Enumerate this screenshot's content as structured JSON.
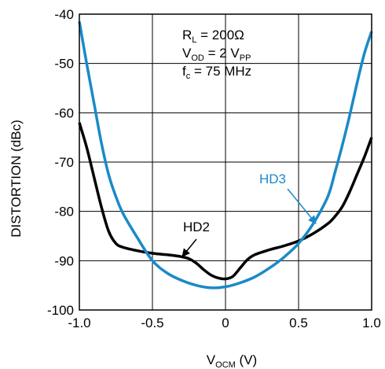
{
  "chart_data": {
    "type": "line",
    "xlabel": {
      "main": "V",
      "sub": "OCM",
      "unit": " (V)"
    },
    "ylabel": "DISTORTION (dBc)",
    "xlim": [
      -1.0,
      1.0
    ],
    "ylim": [
      -100,
      -40
    ],
    "xticks": [
      -1.0,
      -0.5,
      0,
      0.5,
      1.0
    ],
    "xtick_labels": [
      "-1.0",
      "-0.5",
      "0",
      "0.5",
      "1.0"
    ],
    "yticks": [
      -100,
      -90,
      -80,
      -70,
      -60,
      -50,
      -40
    ],
    "ytick_labels": [
      "-100",
      "-90",
      "-80",
      "-70",
      "-60",
      "-50",
      "-40"
    ],
    "grid": true,
    "conditions": {
      "line1": {
        "main": "R",
        "sub": "L",
        "rest": " = 200Ω"
      },
      "line2": {
        "main": "V",
        "sub": "OD",
        "rest": " = 2 V",
        "sub2": "PP"
      },
      "line3": {
        "main": "f",
        "sub": "c",
        "rest": " = 75 MHz"
      }
    },
    "series": [
      {
        "name": "HD2",
        "color": "#000000",
        "x": [
          -1.0,
          -0.95,
          -0.9,
          -0.85,
          -0.8,
          -0.75,
          -0.7,
          -0.6,
          -0.5,
          -0.4,
          -0.3,
          -0.25,
          -0.2,
          -0.15,
          -0.1,
          -0.05,
          0.0,
          0.05,
          0.1,
          0.15,
          0.2,
          0.3,
          0.4,
          0.5,
          0.6,
          0.7,
          0.75,
          0.8,
          0.85,
          0.9,
          0.95,
          1.0
        ],
        "y": [
          -62,
          -67,
          -73,
          -79,
          -84,
          -86.5,
          -87.3,
          -88,
          -88.5,
          -88.8,
          -89.2,
          -89.6,
          -90.5,
          -91.8,
          -92.9,
          -93.5,
          -93.7,
          -93.2,
          -91.5,
          -89.8,
          -88.8,
          -87.8,
          -87,
          -86,
          -84.5,
          -82.5,
          -81,
          -79,
          -76,
          -72.5,
          -69,
          -65
        ]
      },
      {
        "name": "HD3",
        "color": "#1a8ac7",
        "x": [
          -1.0,
          -0.95,
          -0.9,
          -0.85,
          -0.8,
          -0.75,
          -0.7,
          -0.6,
          -0.5,
          -0.4,
          -0.3,
          -0.2,
          -0.1,
          0.0,
          0.1,
          0.2,
          0.3,
          0.4,
          0.5,
          0.6,
          0.7,
          0.75,
          0.8,
          0.85,
          0.9,
          0.95,
          1.0
        ],
        "y": [
          -41.5,
          -50,
          -58,
          -66,
          -72.5,
          -77,
          -80.5,
          -85.5,
          -90,
          -92.5,
          -94,
          -95,
          -95.5,
          -95.3,
          -94.5,
          -93.3,
          -91.5,
          -89.3,
          -86.5,
          -82.5,
          -77,
          -72,
          -66.5,
          -60.5,
          -54,
          -48,
          -43.5
        ]
      }
    ],
    "annotations": [
      {
        "text": "HD2",
        "series": "HD2",
        "arrow": true
      },
      {
        "text": "HD3",
        "series": "HD3",
        "arrow": true
      }
    ]
  }
}
